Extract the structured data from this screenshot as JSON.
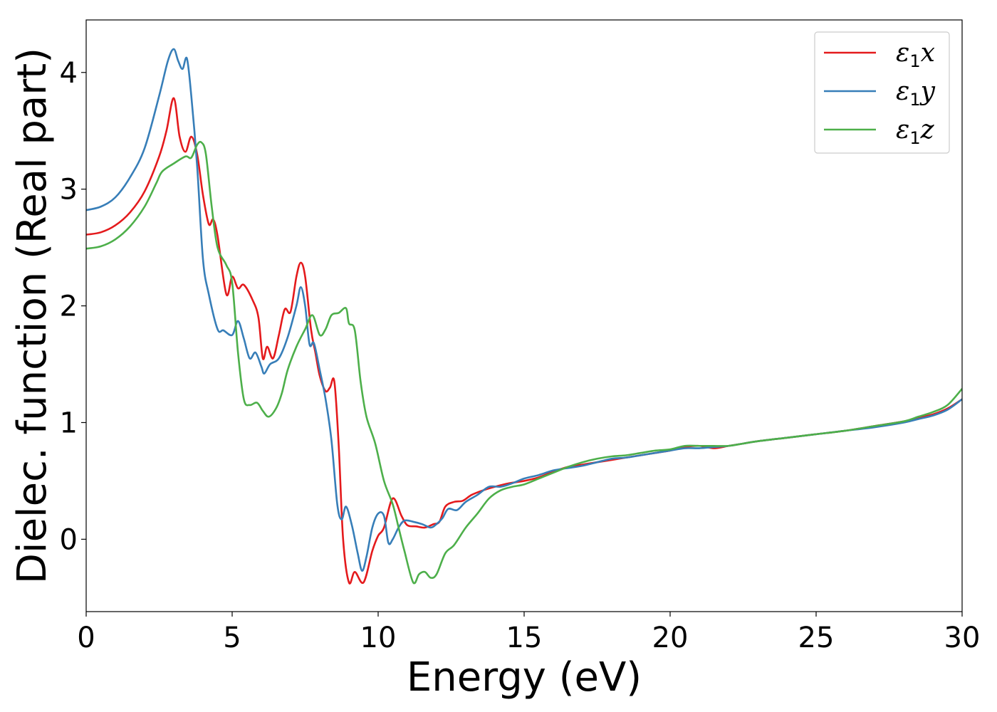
{
  "chart_data": {
    "type": "line",
    "title": "",
    "xlabel": "Energy (eV)",
    "ylabel": "Dielec. function (Real part)",
    "xlim": [
      0,
      30
    ],
    "ylim": [
      -0.62,
      4.45
    ],
    "xticks": [
      0,
      5,
      10,
      15,
      20,
      25,
      30
    ],
    "yticks": [
      0,
      1,
      2,
      3,
      4
    ],
    "grid": false,
    "legend_position": "top-right",
    "series": [
      {
        "name": "ε1x",
        "legend": {
          "base": "ε",
          "sub": "1",
          "var": "x"
        },
        "color": "#e41a1c",
        "points": [
          [
            0,
            2.61
          ],
          [
            0.5,
            2.63
          ],
          [
            1,
            2.69
          ],
          [
            1.5,
            2.8
          ],
          [
            2,
            2.98
          ],
          [
            2.5,
            3.28
          ],
          [
            2.75,
            3.5
          ],
          [
            3,
            3.78
          ],
          [
            3.2,
            3.45
          ],
          [
            3.4,
            3.32
          ],
          [
            3.6,
            3.45
          ],
          [
            3.8,
            3.3
          ],
          [
            4,
            2.95
          ],
          [
            4.2,
            2.7
          ],
          [
            4.35,
            2.74
          ],
          [
            4.5,
            2.6
          ],
          [
            4.8,
            2.1
          ],
          [
            5,
            2.25
          ],
          [
            5.2,
            2.15
          ],
          [
            5.4,
            2.18
          ],
          [
            5.7,
            2.05
          ],
          [
            5.9,
            1.9
          ],
          [
            6.05,
            1.55
          ],
          [
            6.2,
            1.65
          ],
          [
            6.4,
            1.55
          ],
          [
            6.6,
            1.75
          ],
          [
            6.8,
            1.97
          ],
          [
            7,
            1.95
          ],
          [
            7.2,
            2.25
          ],
          [
            7.35,
            2.37
          ],
          [
            7.5,
            2.25
          ],
          [
            7.7,
            1.8
          ],
          [
            7.85,
            1.6
          ],
          [
            8,
            1.4
          ],
          [
            8.2,
            1.27
          ],
          [
            8.35,
            1.3
          ],
          [
            8.5,
            1.35
          ],
          [
            8.65,
            0.8
          ],
          [
            8.8,
            0.0
          ],
          [
            9,
            -0.37
          ],
          [
            9.2,
            -0.28
          ],
          [
            9.5,
            -0.37
          ],
          [
            9.8,
            -0.1
          ],
          [
            10,
            0.03
          ],
          [
            10.2,
            0.1
          ],
          [
            10.5,
            0.35
          ],
          [
            10.8,
            0.2
          ],
          [
            11,
            0.12
          ],
          [
            11.3,
            0.11
          ],
          [
            11.6,
            0.1
          ],
          [
            11.9,
            0.13
          ],
          [
            12.1,
            0.15
          ],
          [
            12.3,
            0.28
          ],
          [
            12.6,
            0.32
          ],
          [
            12.9,
            0.33
          ],
          [
            13.2,
            0.38
          ],
          [
            13.6,
            0.42
          ],
          [
            14,
            0.45
          ],
          [
            14.5,
            0.48
          ],
          [
            15,
            0.5
          ],
          [
            15.5,
            0.53
          ],
          [
            16,
            0.58
          ],
          [
            16.5,
            0.62
          ],
          [
            17,
            0.64
          ],
          [
            17.5,
            0.66
          ],
          [
            18,
            0.68
          ],
          [
            18.5,
            0.7
          ],
          [
            19,
            0.72
          ],
          [
            19.5,
            0.74
          ],
          [
            20,
            0.76
          ],
          [
            20.5,
            0.79
          ],
          [
            21,
            0.8
          ],
          [
            21.5,
            0.78
          ],
          [
            22,
            0.8
          ],
          [
            22.5,
            0.82
          ],
          [
            23,
            0.84
          ],
          [
            24,
            0.87
          ],
          [
            25,
            0.9
          ],
          [
            26,
            0.93
          ],
          [
            27,
            0.97
          ],
          [
            28,
            1.01
          ],
          [
            28.5,
            1.04
          ],
          [
            29,
            1.07
          ],
          [
            29.5,
            1.12
          ],
          [
            30,
            1.2
          ]
        ]
      },
      {
        "name": "ε1y",
        "legend": {
          "base": "ε",
          "sub": "1",
          "var": "y"
        },
        "color": "#377eb8",
        "points": [
          [
            0,
            2.82
          ],
          [
            0.5,
            2.85
          ],
          [
            1,
            2.93
          ],
          [
            1.5,
            3.1
          ],
          [
            2,
            3.35
          ],
          [
            2.5,
            3.8
          ],
          [
            2.8,
            4.1
          ],
          [
            3,
            4.2
          ],
          [
            3.15,
            4.1
          ],
          [
            3.3,
            4.03
          ],
          [
            3.45,
            4.12
          ],
          [
            3.6,
            3.8
          ],
          [
            3.8,
            3.2
          ],
          [
            4,
            2.4
          ],
          [
            4.2,
            2.1
          ],
          [
            4.5,
            1.8
          ],
          [
            4.7,
            1.79
          ],
          [
            5,
            1.75
          ],
          [
            5.2,
            1.87
          ],
          [
            5.4,
            1.72
          ],
          [
            5.6,
            1.55
          ],
          [
            5.8,
            1.6
          ],
          [
            6,
            1.48
          ],
          [
            6.1,
            1.42
          ],
          [
            6.3,
            1.5
          ],
          [
            6.6,
            1.55
          ],
          [
            6.9,
            1.73
          ],
          [
            7.2,
            2.0
          ],
          [
            7.35,
            2.16
          ],
          [
            7.5,
            2.0
          ],
          [
            7.65,
            1.67
          ],
          [
            7.8,
            1.68
          ],
          [
            8,
            1.45
          ],
          [
            8.2,
            1.2
          ],
          [
            8.4,
            0.85
          ],
          [
            8.6,
            0.3
          ],
          [
            8.75,
            0.17
          ],
          [
            8.9,
            0.28
          ],
          [
            9.1,
            0.12
          ],
          [
            9.3,
            -0.12
          ],
          [
            9.45,
            -0.27
          ],
          [
            9.6,
            -0.15
          ],
          [
            9.8,
            0.1
          ],
          [
            10,
            0.22
          ],
          [
            10.2,
            0.2
          ],
          [
            10.35,
            -0.03
          ],
          [
            10.5,
            0.0
          ],
          [
            10.7,
            0.1
          ],
          [
            10.9,
            0.16
          ],
          [
            11.2,
            0.15
          ],
          [
            11.5,
            0.13
          ],
          [
            11.8,
            0.1
          ],
          [
            12,
            0.13
          ],
          [
            12.2,
            0.18
          ],
          [
            12.4,
            0.26
          ],
          [
            12.7,
            0.25
          ],
          [
            13,
            0.32
          ],
          [
            13.4,
            0.38
          ],
          [
            13.8,
            0.45
          ],
          [
            14.2,
            0.45
          ],
          [
            14.6,
            0.48
          ],
          [
            15,
            0.52
          ],
          [
            15.5,
            0.55
          ],
          [
            16,
            0.59
          ],
          [
            16.5,
            0.61
          ],
          [
            17,
            0.63
          ],
          [
            17.5,
            0.66
          ],
          [
            18,
            0.69
          ],
          [
            18.5,
            0.7
          ],
          [
            19,
            0.72
          ],
          [
            19.5,
            0.74
          ],
          [
            20,
            0.76
          ],
          [
            20.5,
            0.78
          ],
          [
            21,
            0.78
          ],
          [
            21.5,
            0.79
          ],
          [
            22,
            0.8
          ],
          [
            22.5,
            0.82
          ],
          [
            23,
            0.84
          ],
          [
            24,
            0.87
          ],
          [
            25,
            0.9
          ],
          [
            26,
            0.93
          ],
          [
            27,
            0.96
          ],
          [
            28,
            1.0
          ],
          [
            28.5,
            1.03
          ],
          [
            29,
            1.06
          ],
          [
            29.5,
            1.11
          ],
          [
            30,
            1.2
          ]
        ]
      },
      {
        "name": "ε1z",
        "legend": {
          "base": "ε",
          "sub": "1",
          "var": "z"
        },
        "color": "#4daf4a",
        "points": [
          [
            0,
            2.49
          ],
          [
            0.5,
            2.51
          ],
          [
            1,
            2.57
          ],
          [
            1.5,
            2.68
          ],
          [
            2,
            2.85
          ],
          [
            2.4,
            3.05
          ],
          [
            2.6,
            3.15
          ],
          [
            3,
            3.22
          ],
          [
            3.4,
            3.28
          ],
          [
            3.6,
            3.27
          ],
          [
            3.8,
            3.38
          ],
          [
            3.95,
            3.4
          ],
          [
            4.1,
            3.3
          ],
          [
            4.3,
            2.85
          ],
          [
            4.5,
            2.5
          ],
          [
            4.8,
            2.35
          ],
          [
            5,
            2.2
          ],
          [
            5.2,
            1.6
          ],
          [
            5.4,
            1.2
          ],
          [
            5.6,
            1.15
          ],
          [
            5.85,
            1.17
          ],
          [
            6.05,
            1.1
          ],
          [
            6.25,
            1.05
          ],
          [
            6.5,
            1.12
          ],
          [
            6.7,
            1.25
          ],
          [
            6.9,
            1.45
          ],
          [
            7.2,
            1.65
          ],
          [
            7.5,
            1.8
          ],
          [
            7.75,
            1.92
          ],
          [
            8,
            1.75
          ],
          [
            8.2,
            1.8
          ],
          [
            8.4,
            1.92
          ],
          [
            8.65,
            1.94
          ],
          [
            8.9,
            1.98
          ],
          [
            9,
            1.85
          ],
          [
            9.2,
            1.79
          ],
          [
            9.4,
            1.35
          ],
          [
            9.6,
            1.05
          ],
          [
            9.9,
            0.82
          ],
          [
            10.2,
            0.5
          ],
          [
            10.5,
            0.3
          ],
          [
            10.7,
            0.1
          ],
          [
            10.9,
            -0.1
          ],
          [
            11.2,
            -0.37
          ],
          [
            11.4,
            -0.3
          ],
          [
            11.6,
            -0.28
          ],
          [
            11.8,
            -0.33
          ],
          [
            12,
            -0.3
          ],
          [
            12.3,
            -0.12
          ],
          [
            12.6,
            -0.05
          ],
          [
            13,
            0.1
          ],
          [
            13.4,
            0.22
          ],
          [
            13.8,
            0.35
          ],
          [
            14.2,
            0.42
          ],
          [
            14.6,
            0.45
          ],
          [
            15,
            0.47
          ],
          [
            15.5,
            0.52
          ],
          [
            16,
            0.57
          ],
          [
            16.5,
            0.62
          ],
          [
            17,
            0.66
          ],
          [
            17.5,
            0.69
          ],
          [
            18,
            0.71
          ],
          [
            18.5,
            0.72
          ],
          [
            19,
            0.74
          ],
          [
            19.5,
            0.76
          ],
          [
            20,
            0.77
          ],
          [
            20.5,
            0.8
          ],
          [
            21,
            0.8
          ],
          [
            21.5,
            0.8
          ],
          [
            22,
            0.8
          ],
          [
            22.5,
            0.82
          ],
          [
            23,
            0.84
          ],
          [
            24,
            0.87
          ],
          [
            25,
            0.9
          ],
          [
            26,
            0.93
          ],
          [
            27,
            0.97
          ],
          [
            28,
            1.01
          ],
          [
            28.5,
            1.05
          ],
          [
            29,
            1.09
          ],
          [
            29.5,
            1.15
          ],
          [
            30,
            1.29
          ]
        ]
      }
    ]
  }
}
